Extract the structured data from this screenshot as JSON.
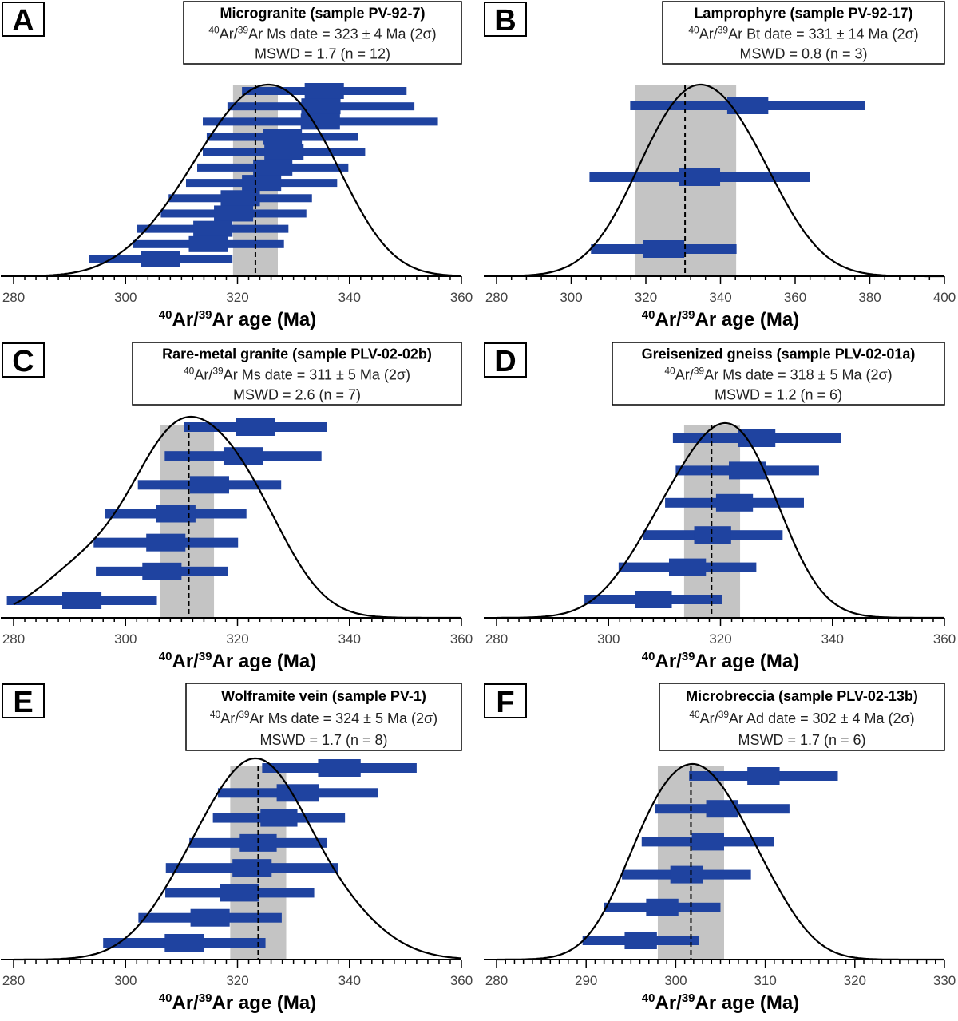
{
  "figure": {
    "colors": {
      "bar": "#1f43a0",
      "band": "#c4c4c4",
      "curve": "#000000",
      "mean_line": "#000000",
      "frame": "#000000"
    }
  },
  "chart_data": [
    {
      "type": "errorbar-probability",
      "panel_letter": "A",
      "title": "Microgranite (sample PV-92-7)",
      "date_mineral": "Ms",
      "date_value": 323,
      "date_uncertainty": 4,
      "date_line_parts": {
        "pre_sup1": "40",
        "pre_mid": "Ar/",
        "pre_sup2": "39",
        "rest": "Ar Ms date = 323 ± 4 Ma (2σ)"
      },
      "mswd_line": "MSWD = 1.7 (n = 12)",
      "mswd": 1.7,
      "n": 12,
      "xlabel_parts": {
        "sup1": "40",
        "mid": "Ar/",
        "sup2": "39",
        "rest": "Ar age (Ma)"
      },
      "xlim": [
        280,
        360
      ],
      "xticks": [
        280,
        300,
        320,
        340,
        360
      ],
      "xtick_labels": [
        "280",
        "300",
        "320",
        "340",
        "360"
      ],
      "minor_tick_step": 2,
      "band": [
        319.2,
        327.2
      ],
      "mean": 323.2,
      "analyses": [
        {
          "age": 335.5,
          "err1": 3.5,
          "err2": 14.7
        },
        {
          "age": 334.9,
          "err1": 3.5,
          "err2": 16.7
        },
        {
          "age": 334.8,
          "err1": 3.5,
          "err2": 21.0
        },
        {
          "age": 328.0,
          "err1": 3.5,
          "err2": 13.5
        },
        {
          "age": 328.3,
          "err1": 3.5,
          "err2": 14.5
        },
        {
          "age": 326.3,
          "err1": 3.5,
          "err2": 13.5
        },
        {
          "age": 324.3,
          "err1": 3.5,
          "err2": 13.5
        },
        {
          "age": 320.5,
          "err1": 3.5,
          "err2": 12.8
        },
        {
          "age": 319.3,
          "err1": 3.5,
          "err2": 13.0
        },
        {
          "age": 315.6,
          "err1": 3.5,
          "err2": 13.5
        },
        {
          "age": 314.8,
          "err1": 3.5,
          "err2": 13.5
        },
        {
          "age": 306.3,
          "err1": 3.5,
          "err2": 12.8
        }
      ]
    },
    {
      "type": "errorbar-probability",
      "panel_letter": "B",
      "title": "Lamprophyre (sample PV-92-17)",
      "date_mineral": "Bt",
      "date_value": 331,
      "date_uncertainty": 14,
      "date_line_parts": {
        "pre_sup1": "40",
        "pre_mid": "Ar/",
        "pre_sup2": "39",
        "rest": "Ar Bt date = 331 ± 14 Ma (2σ)"
      },
      "mswd_line": "MSWD = 0.8 (n = 3)",
      "mswd": 0.8,
      "n": 3,
      "xlabel_parts": {
        "sup1": "40",
        "mid": "Ar/",
        "sup2": "39",
        "rest": "Ar age (Ma)"
      },
      "xlim": [
        280,
        400
      ],
      "xticks": [
        280,
        300,
        320,
        340,
        360,
        380,
        400
      ],
      "xtick_labels": [
        "280",
        "300",
        "320",
        "340",
        "360",
        "380",
        "400"
      ],
      "minor_tick_step": 4,
      "band": [
        317.0,
        344.2
      ],
      "mean": 330.5,
      "analyses": [
        {
          "age": 347.3,
          "err1": 5.5,
          "err2": 31.5
        },
        {
          "age": 334.4,
          "err1": 5.5,
          "err2": 29.5
        },
        {
          "age": 324.8,
          "err1": 5.5,
          "err2": 19.5
        }
      ]
    },
    {
      "type": "errorbar-probability",
      "panel_letter": "C",
      "title": "Rare-metal granite (sample PLV-02-02b)",
      "date_mineral": "Ms",
      "date_value": 311,
      "date_uncertainty": 5,
      "date_line_parts": {
        "pre_sup1": "40",
        "pre_mid": "Ar/",
        "pre_sup2": "39",
        "rest": "Ar Ms date = 311 ± 5 Ma (2σ)"
      },
      "mswd_line": "MSWD = 2.6 (n = 7)",
      "mswd": 2.6,
      "n": 7,
      "xlabel_parts": {
        "sup1": "40",
        "mid": "Ar/",
        "sup2": "39",
        "rest": "Ar age (Ma)"
      },
      "xlim": [
        280,
        360
      ],
      "xticks": [
        280,
        300,
        320,
        340,
        360
      ],
      "xtick_labels": [
        "280",
        "300",
        "320",
        "340",
        "360"
      ],
      "minor_tick_step": 2,
      "band": [
        306.2,
        315.8
      ],
      "mean": 311.3,
      "analyses": [
        {
          "age": 323.2,
          "err1": 3.5,
          "err2": 12.8
        },
        {
          "age": 321.0,
          "err1": 3.5,
          "err2": 14.0
        },
        {
          "age": 315.0,
          "err1": 3.5,
          "err2": 12.8
        },
        {
          "age": 309.0,
          "err1": 3.5,
          "err2": 12.6
        },
        {
          "age": 307.2,
          "err1": 3.5,
          "err2": 12.9
        },
        {
          "age": 306.5,
          "err1": 3.5,
          "err2": 11.8
        },
        {
          "age": 292.2,
          "err1": 3.5,
          "err2": 13.4
        }
      ]
    },
    {
      "type": "errorbar-probability",
      "panel_letter": "D",
      "title": "Greisenized gneiss (sample PLV-02-01a)",
      "date_mineral": "Ms",
      "date_value": 318,
      "date_uncertainty": 5,
      "date_line_parts": {
        "pre_sup1": "40",
        "pre_mid": "Ar/",
        "pre_sup2": "39",
        "rest": "Ar Ms date = 318 ± 5 Ma (2σ)"
      },
      "mswd_line": "MSWD = 1.2 (n = 6)",
      "mswd": 1.2,
      "n": 6,
      "xlabel_parts": {
        "sup1": "40",
        "mid": "Ar/",
        "sup2": "39",
        "rest": "Ar age (Ma)"
      },
      "xlim": [
        280,
        360
      ],
      "xticks": [
        280,
        300,
        320,
        340,
        360
      ],
      "xtick_labels": [
        "280",
        "300",
        "320",
        "340",
        "360"
      ],
      "minor_tick_step": 2,
      "band": [
        313.5,
        323.5
      ],
      "mean": 318.4,
      "analyses": [
        {
          "age": 326.5,
          "err1": 3.3,
          "err2": 15.0
        },
        {
          "age": 324.8,
          "err1": 3.3,
          "err2": 12.8
        },
        {
          "age": 322.5,
          "err1": 3.3,
          "err2": 12.4
        },
        {
          "age": 318.6,
          "err1": 3.3,
          "err2": 12.5
        },
        {
          "age": 314.1,
          "err1": 3.3,
          "err2": 12.3
        },
        {
          "age": 308.0,
          "err1": 3.3,
          "err2": 12.3
        }
      ]
    },
    {
      "type": "errorbar-probability",
      "panel_letter": "E",
      "title": "Wolframite vein (sample PV-1)",
      "date_mineral": "Ms",
      "date_value": 324,
      "date_uncertainty": 5,
      "date_line_parts": {
        "pre_sup1": "40",
        "pre_mid": "Ar/",
        "pre_sup2": "39",
        "rest": "Ar Ms date = 324 ± 5 Ma (2σ)"
      },
      "mswd_line": "MSWD = 1.7 (n = 8)",
      "mswd": 1.7,
      "n": 8,
      "xlabel_parts": {
        "sup1": "40",
        "mid": "Ar/",
        "sup2": "39",
        "rest": "Ar age (Ma)"
      },
      "xlim": [
        280,
        360
      ],
      "xticks": [
        280,
        300,
        320,
        340,
        360
      ],
      "xtick_labels": [
        "280",
        "300",
        "320",
        "340",
        "360"
      ],
      "minor_tick_step": 2,
      "band": [
        318.7,
        328.7
      ],
      "mean": 323.7,
      "analyses": [
        {
          "age": 338.2,
          "err1": 3.8,
          "err2": 13.8
        },
        {
          "age": 330.8,
          "err1": 3.8,
          "err2": 14.3
        },
        {
          "age": 327.4,
          "err1": 3.3,
          "err2": 11.8
        },
        {
          "age": 323.7,
          "err1": 3.3,
          "err2": 12.3
        },
        {
          "age": 322.6,
          "err1": 3.5,
          "err2": 15.4
        },
        {
          "age": 320.4,
          "err1": 3.5,
          "err2": 13.3
        },
        {
          "age": 315.1,
          "err1": 3.5,
          "err2": 12.8
        },
        {
          "age": 310.5,
          "err1": 3.5,
          "err2": 14.5
        }
      ]
    },
    {
      "type": "errorbar-probability",
      "panel_letter": "F",
      "title": "Microbreccia (sample PLV-02-13b)",
      "date_mineral": "Ad",
      "date_value": 302,
      "date_uncertainty": 4,
      "date_line_parts": {
        "pre_sup1": "40",
        "pre_mid": "Ar/",
        "pre_sup2": "39",
        "rest": "Ar Ad date = 302 ± 4 Ma (2σ)"
      },
      "mswd_line": "MSWD = 1.7 (n = 6)",
      "mswd": 1.7,
      "n": 6,
      "xlabel_parts": {
        "sup1": "40",
        "mid": "Ar/",
        "sup2": "39",
        "rest": "Ar age (Ma)"
      },
      "xlim": [
        280,
        330
      ],
      "xticks": [
        280,
        290,
        300,
        310,
        320,
        330
      ],
      "xtick_labels": [
        "280",
        "290",
        "300",
        "310",
        "320",
        "330"
      ],
      "minor_tick_step": 1,
      "band": [
        298.0,
        305.4
      ],
      "mean": 301.7,
      "analyses": [
        {
          "age": 309.8,
          "err1": 1.8,
          "err2": 8.3
        },
        {
          "age": 305.2,
          "err1": 1.8,
          "err2": 7.5
        },
        {
          "age": 303.6,
          "err1": 1.8,
          "err2": 7.4
        },
        {
          "age": 301.2,
          "err1": 1.8,
          "err2": 7.2
        },
        {
          "age": 298.5,
          "err1": 1.8,
          "err2": 6.5
        },
        {
          "age": 296.1,
          "err1": 1.8,
          "err2": 6.5
        }
      ]
    }
  ]
}
